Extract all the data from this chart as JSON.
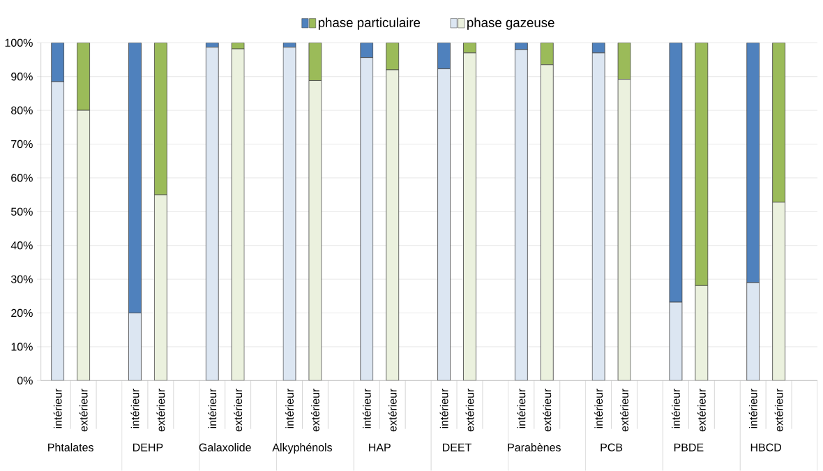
{
  "chart_data": {
    "type": "bar",
    "stacked": true,
    "categories": [
      "intérieur",
      "extérieur",
      "intérieur",
      "extérieur",
      "intérieur",
      "extérieur",
      "intérieur",
      "extérieur",
      "intérieur",
      "extérieur",
      "intérieur",
      "extérieur",
      "intérieur",
      "extérieur",
      "intérieur",
      "extérieur",
      "intérieur",
      "extérieur",
      "intérieur",
      "extérieur"
    ],
    "annotations": [
      "Phtalates",
      "DEHP",
      "Galaxolide",
      "Alkyphénols",
      "HAP",
      "DEET",
      "Parabènes",
      "PCB",
      "PBDE",
      "HBCD"
    ],
    "ylim": [
      0,
      100
    ],
    "yticks": [
      {
        "value": 0,
        "label": "0%"
      },
      {
        "value": 10,
        "label": "10%"
      },
      {
        "value": 20,
        "label": "20%"
      },
      {
        "value": 30,
        "label": "30%"
      },
      {
        "value": 40,
        "label": "40%"
      },
      {
        "value": 50,
        "label": "50%"
      },
      {
        "value": 60,
        "label": "60%"
      },
      {
        "value": 70,
        "label": "70%"
      },
      {
        "value": 80,
        "label": "80%"
      },
      {
        "value": 90,
        "label": "90%"
      },
      {
        "value": 100,
        "label": "100%"
      }
    ],
    "grid": "y",
    "legend": "top",
    "series": [
      {
        "name": "phase gazeuse",
        "colors": [
          "#dce6f2",
          "#ebf1de",
          "#dce6f2",
          "#ebf1de",
          "#dce6f2",
          "#ebf1de",
          "#dce6f2",
          "#ebf1de",
          "#dce6f2",
          "#ebf1de",
          "#dce6f2",
          "#ebf1de",
          "#dce6f2",
          "#ebf1de",
          "#dce6f2",
          "#ebf1de",
          "#dce6f2",
          "#ebf1de",
          "#dce6f2",
          "#ebf1de"
        ],
        "values": [
          88.5,
          80,
          20,
          55,
          98.7,
          98.2,
          98.7,
          88.8,
          95.6,
          92,
          92.3,
          97,
          98,
          93.5,
          97,
          89.2,
          23.2,
          28.1,
          29,
          52.8
        ]
      },
      {
        "name": "phase particulaire",
        "colors": [
          "#4f81bd",
          "#9bbb59",
          "#4f81bd",
          "#9bbb59",
          "#4f81bd",
          "#9bbb59",
          "#4f81bd",
          "#9bbb59",
          "#4f81bd",
          "#9bbb59",
          "#4f81bd",
          "#9bbb59",
          "#4f81bd",
          "#9bbb59",
          "#4f81bd",
          "#9bbb59",
          "#4f81bd",
          "#9bbb59",
          "#4f81bd",
          "#9bbb59"
        ],
        "values": [
          11.5,
          20,
          80,
          45,
          1.3,
          1.8,
          1.3,
          11.2,
          4.4,
          8,
          7.7,
          3,
          2,
          6.5,
          3,
          10.8,
          76.8,
          71.9,
          71,
          47.2
        ]
      }
    ]
  }
}
